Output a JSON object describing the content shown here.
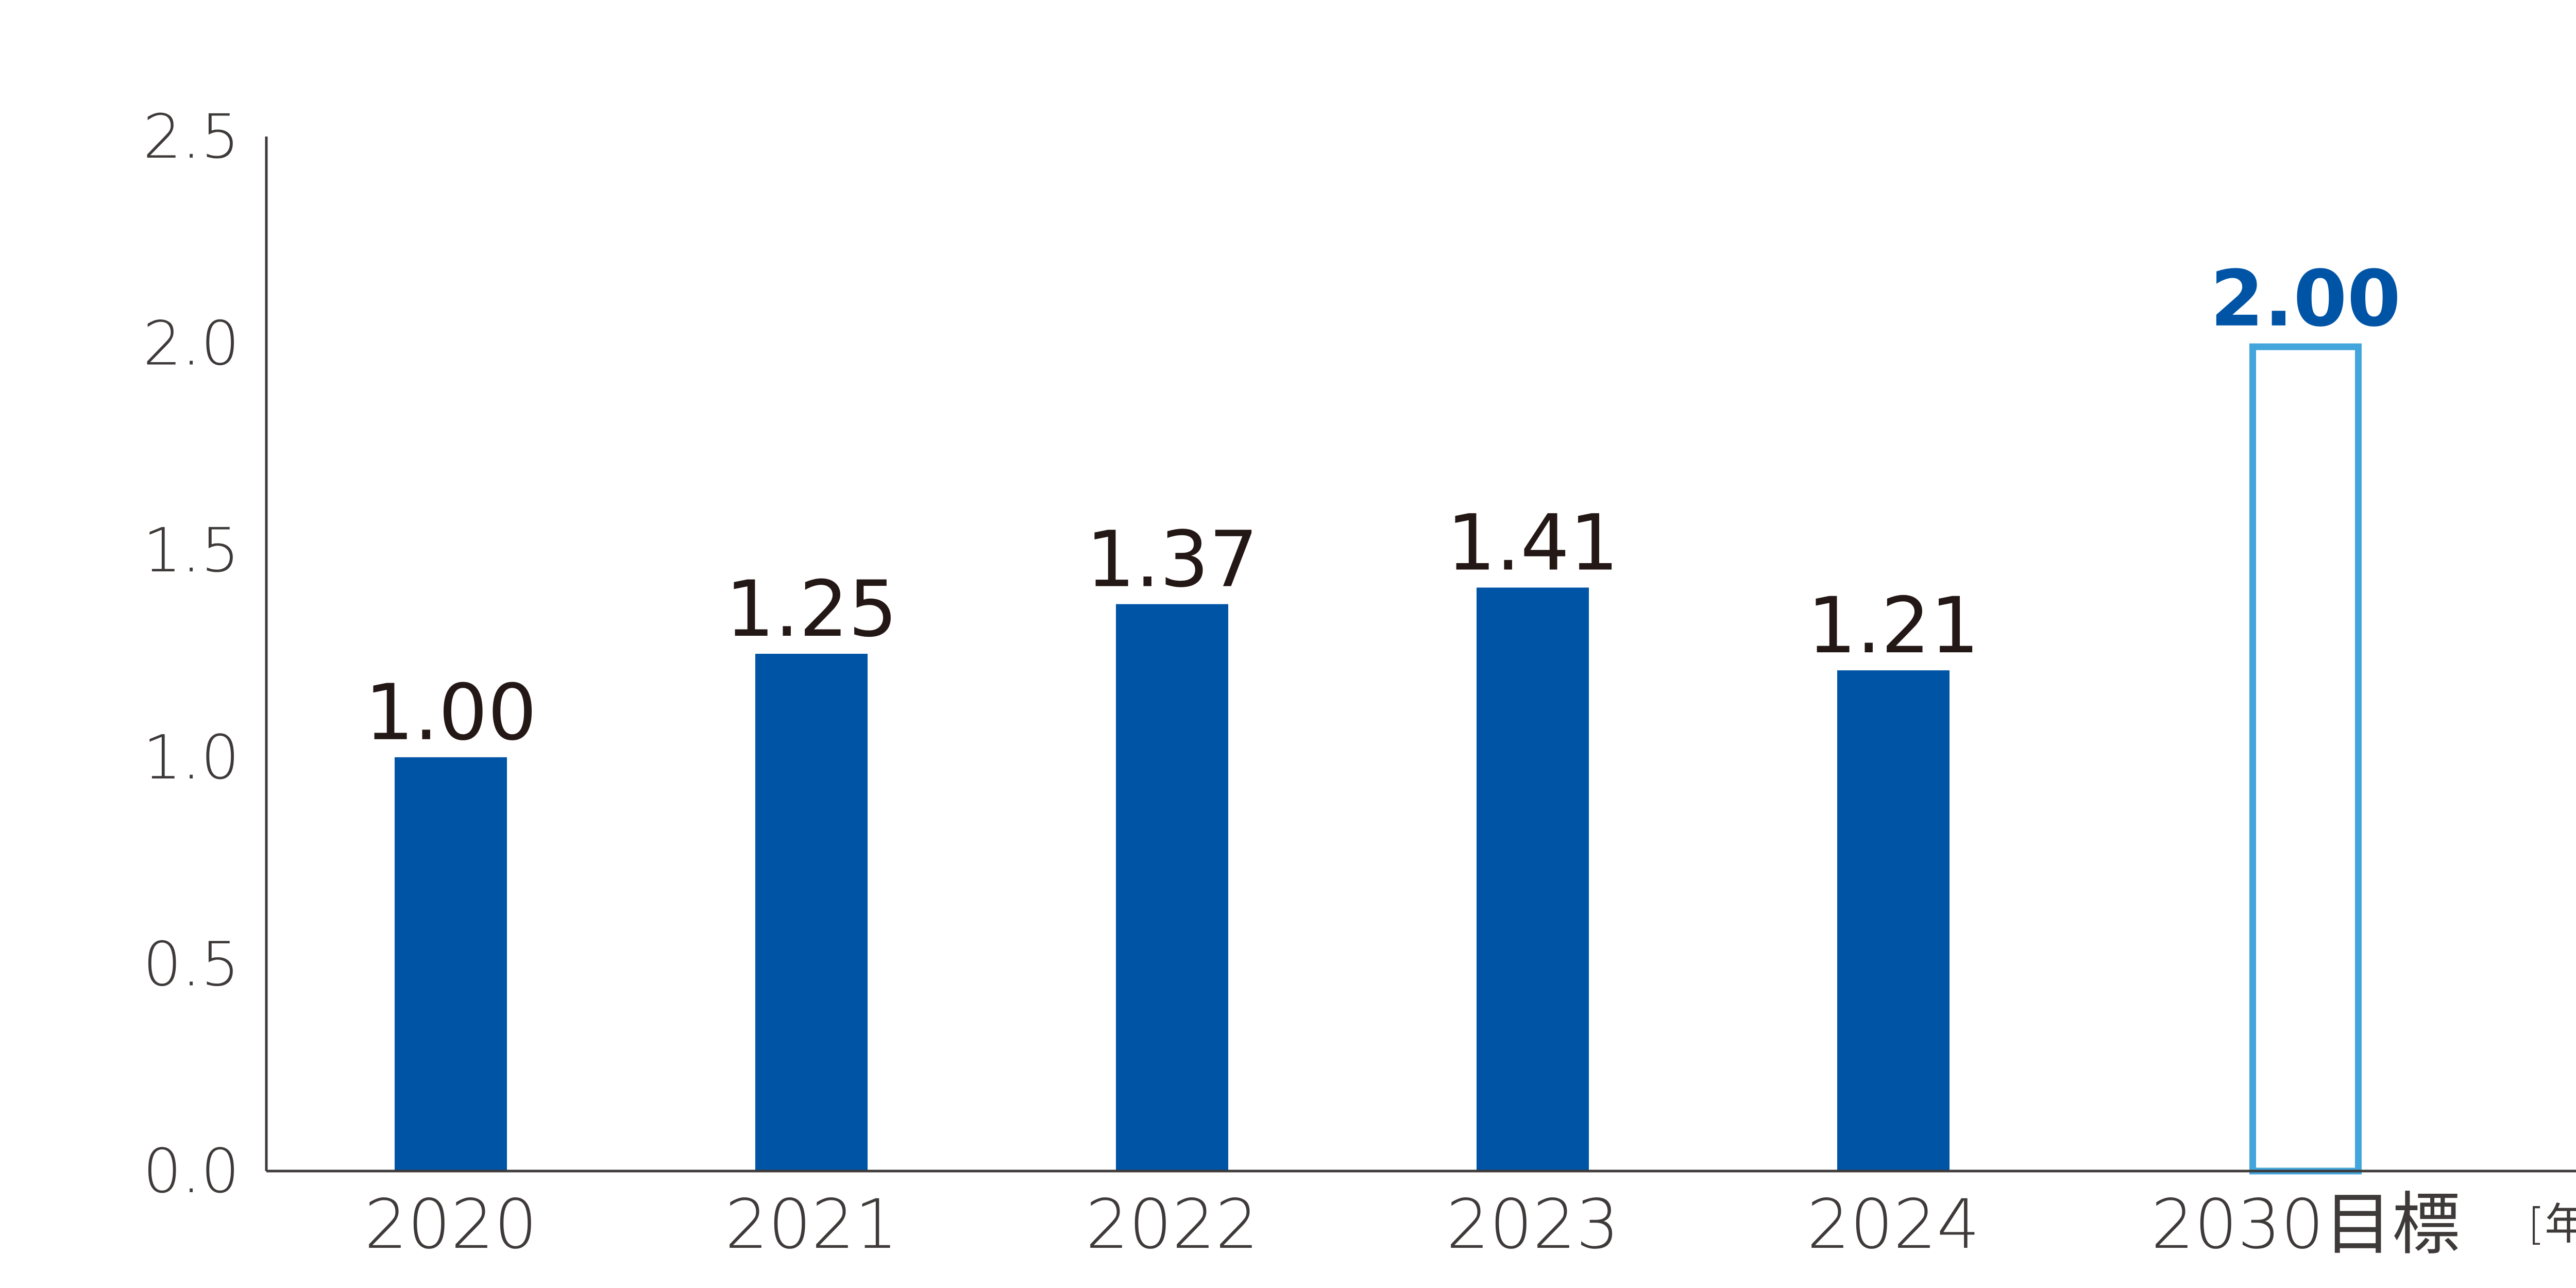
{
  "chart_data": {
    "type": "bar",
    "categories": [
      "2020",
      "2021",
      "2022",
      "2023",
      "2024",
      "2030目標"
    ],
    "values": [
      1.0,
      1.25,
      1.37,
      1.41,
      1.21,
      2.0
    ],
    "value_labels": [
      "1.00",
      "1.25",
      "1.37",
      "1.41",
      "1.21",
      "2.00"
    ],
    "target_index": 5,
    "ylim": [
      0,
      2.5
    ],
    "yticks": [
      "0.0",
      "0.5",
      "1.0",
      "1.5",
      "2.0",
      "2.5"
    ],
    "x_unit": "[年度]",
    "grid": false,
    "colors": {
      "bar": "#0054a6",
      "target_outline": "#42a5db",
      "target_label": "#0054a6",
      "axis": "#3e3a39",
      "text": "#3e3a39"
    }
  }
}
